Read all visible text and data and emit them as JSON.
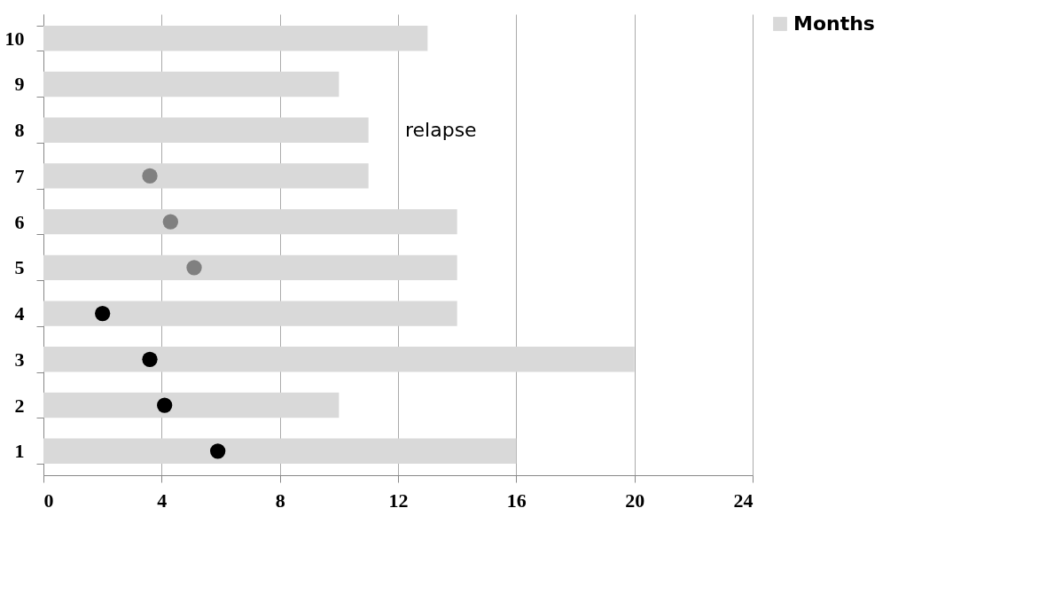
{
  "chart_data": {
    "type": "bar",
    "orientation": "horizontal",
    "categories": [
      "10",
      "9",
      "8",
      "7",
      "6",
      "5",
      "4",
      "3",
      "2",
      "1"
    ],
    "series": [
      {
        "name": "Months",
        "color": "#d9d9d9",
        "values": [
          13,
          10,
          11,
          11,
          14,
          14,
          14,
          20,
          10,
          16
        ]
      },
      {
        "type": "scatter",
        "color": "#000000",
        "marker": "circle",
        "values": [
          null,
          null,
          null,
          null,
          null,
          null,
          2.0,
          3.6,
          4.1,
          5.9
        ]
      },
      {
        "type": "scatter",
        "color": "#808080",
        "marker": "circle",
        "values": [
          null,
          null,
          null,
          3.6,
          4.3,
          5.1,
          null,
          null,
          null,
          null
        ]
      }
    ],
    "xlim": [
      0,
      24
    ],
    "xticks": [
      0,
      4,
      8,
      12,
      16,
      20,
      24
    ],
    "grid": "x",
    "legend": "right",
    "annotations": [
      "relapse"
    ]
  }
}
